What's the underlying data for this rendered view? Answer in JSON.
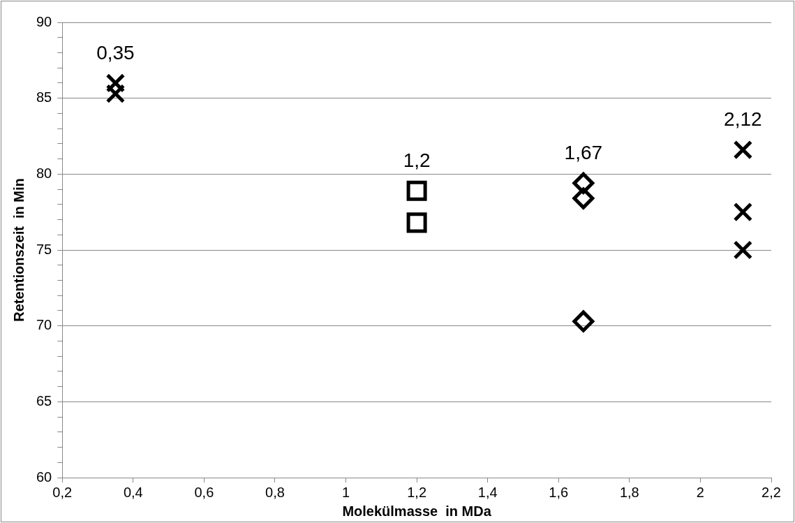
{
  "chart_data": {
    "type": "scatter",
    "xlabel": "Molekülmasse  in MDa",
    "ylabel": "Retentionszeit  in Min",
    "series": [
      {
        "color": "#000000",
        "marker": "cross",
        "x": [
          0.35,
          0.35
        ],
        "values": [
          86.0,
          85.3
        ]
      },
      {
        "color": "#000000",
        "marker": "square",
        "x": [
          1.2,
          1.2
        ],
        "values": [
          78.9,
          76.8
        ]
      },
      {
        "color": "#000000",
        "marker": "diamond",
        "x": [
          1.67,
          1.67,
          1.67
        ],
        "values": [
          79.4,
          78.4,
          70.3
        ]
      },
      {
        "color": "#000000",
        "marker": "cross",
        "x": [
          2.12,
          2.12,
          2.12
        ],
        "values": [
          81.6,
          77.5,
          75.0
        ]
      }
    ],
    "annotations": [
      {
        "text": "0,35",
        "x": 0.35,
        "y": 86.0
      },
      {
        "text": "1,2",
        "x": 1.2,
        "y": 78.9
      },
      {
        "text": "1,67",
        "x": 1.67,
        "y": 79.4
      },
      {
        "text": "2,12",
        "x": 2.12,
        "y": 81.6
      }
    ],
    "xlim": [
      0.2,
      2.2
    ],
    "xticks": [
      {
        "value": 0.2,
        "label": "0,2"
      },
      {
        "value": 0.4,
        "label": "0,4"
      },
      {
        "value": 0.6,
        "label": "0,6"
      },
      {
        "value": 0.8,
        "label": "0,8"
      },
      {
        "value": 1,
        "label": "1"
      },
      {
        "value": 1.2,
        "label": "1,2"
      },
      {
        "value": 1.4,
        "label": "1,4"
      },
      {
        "value": 1.6,
        "label": "1,6"
      },
      {
        "value": 1.8,
        "label": "1,8"
      },
      {
        "value": 2,
        "label": "2"
      },
      {
        "value": 2.2,
        "label": "2,2"
      }
    ],
    "ylim": [
      60,
      90
    ],
    "yticks": [
      60,
      {
        "value": 61,
        "label": null
      },
      {
        "value": 62,
        "label": null
      },
      {
        "value": 63,
        "label": null
      },
      {
        "value": 64,
        "label": null
      },
      65,
      {
        "value": 66,
        "label": null
      },
      {
        "value": 67,
        "label": null
      },
      {
        "value": 68,
        "label": null
      },
      {
        "value": 69,
        "label": null
      },
      70,
      {
        "value": 71,
        "label": null
      },
      {
        "value": 72,
        "label": null
      },
      {
        "value": 73,
        "label": null
      },
      {
        "value": 74,
        "label": null
      },
      75,
      {
        "value": 76,
        "label": null
      },
      {
        "value": 77,
        "label": null
      },
      {
        "value": 78,
        "label": null
      },
      {
        "value": 79,
        "label": null
      },
      80,
      {
        "value": 81,
        "label": null
      },
      {
        "value": 82,
        "label": null
      },
      {
        "value": 83,
        "label": null
      },
      {
        "value": 84,
        "label": null
      },
      85,
      {
        "value": 86,
        "label": null
      },
      {
        "value": 87,
        "label": null
      },
      {
        "value": 88,
        "label": null
      },
      {
        "value": 89,
        "label": null
      },
      90
    ],
    "grid": "y",
    "legend": false
  }
}
